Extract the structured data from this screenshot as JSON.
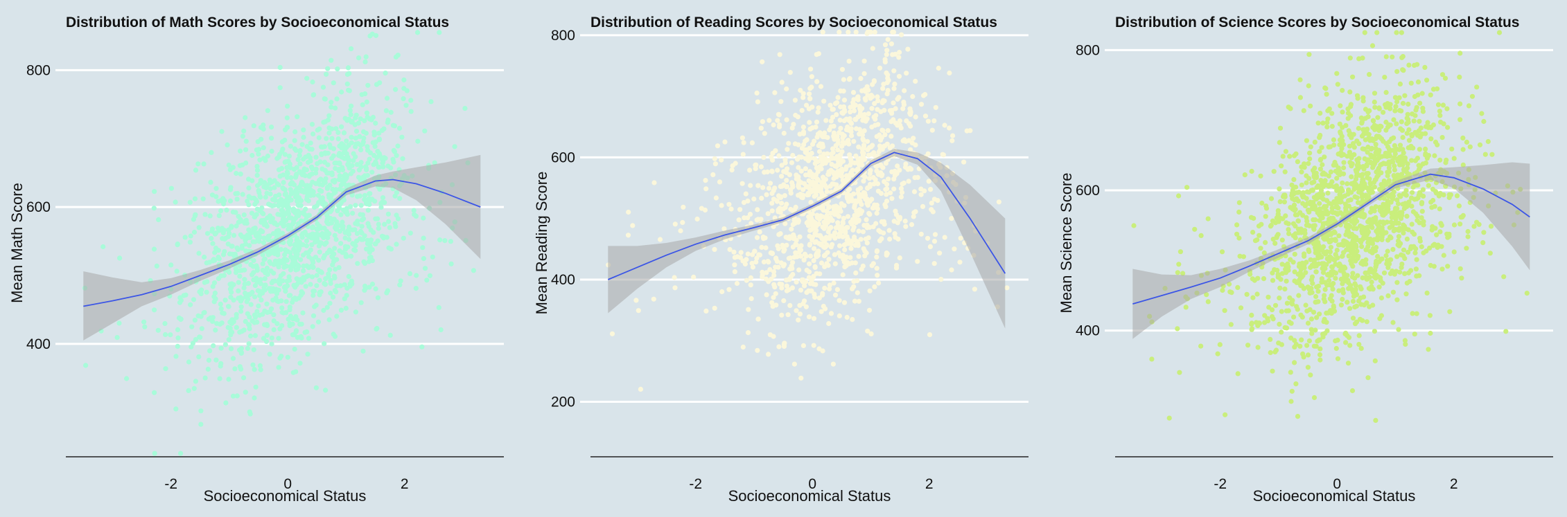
{
  "chart_data": [
    {
      "type": "scatter",
      "title": "Distribution of Math Scores by Socioeconomical Status",
      "xlabel": "Socioeconomical Status",
      "ylabel": "Mean Math Score",
      "xlim": [
        -3.8,
        3.7
      ],
      "ylim": [
        235,
        860
      ],
      "xticks": [
        -2,
        0,
        2
      ],
      "yticks": [
        400,
        600,
        800
      ],
      "point_color": "#a8fbd9",
      "point_distribution": {
        "n": 1600,
        "x_mean": 0.2,
        "x_sd": 0.95,
        "x_min": -3.5,
        "x_max": 3.4,
        "resid_sd": 85,
        "seed": 11
      },
      "smooth": {
        "x": [
          -3.5,
          -3.0,
          -2.5,
          -2.0,
          -1.5,
          -1.0,
          -0.5,
          0.0,
          0.5,
          1.0,
          1.5,
          1.8,
          2.2,
          2.7,
          3.3
        ],
        "y": [
          455,
          463,
          472,
          484,
          500,
          516,
          535,
          558,
          585,
          622,
          638,
          640,
          634,
          620,
          600
        ],
        "lower": [
          405,
          430,
          455,
          472,
          492,
          510,
          530,
          554,
          581,
          617,
          630,
          628,
          610,
          575,
          524
        ],
        "upper": [
          506,
          497,
          490,
          496,
          508,
          522,
          540,
          562,
          589,
          627,
          646,
          652,
          658,
          665,
          676
        ]
      },
      "grid": "horizontal",
      "line_color": "#3b55e6",
      "band_color": "#a8a8a8"
    },
    {
      "type": "scatter",
      "title": "Distribution of Reading Scores by Socioeconomical Status",
      "xlabel": "Socioeconomical Status",
      "ylabel": "Mean Reading Score",
      "xlim": [
        -3.8,
        3.7
      ],
      "ylim": [
        110,
        810
      ],
      "xticks": [
        -2,
        0,
        2
      ],
      "yticks": [
        200,
        400,
        600,
        800
      ],
      "point_color": "#fbf7db",
      "point_distribution": {
        "n": 1400,
        "x_mean": 0.35,
        "x_sd": 0.85,
        "x_min": -3.5,
        "x_max": 3.4,
        "resid_sd": 95,
        "seed": 23
      },
      "smooth": {
        "x": [
          -3.5,
          -3.0,
          -2.5,
          -2.0,
          -1.5,
          -1.0,
          -0.5,
          0.0,
          0.5,
          1.0,
          1.4,
          1.8,
          2.2,
          2.7,
          3.3
        ],
        "y": [
          400,
          420,
          440,
          458,
          473,
          485,
          498,
          520,
          545,
          590,
          608,
          598,
          568,
          500,
          410
        ],
        "lower": [
          345,
          385,
          420,
          447,
          466,
          480,
          494,
          516,
          541,
          585,
          602,
          588,
          545,
          445,
          320
        ],
        "upper": [
          455,
          455,
          460,
          469,
          480,
          490,
          502,
          524,
          549,
          595,
          614,
          608,
          591,
          555,
          500
        ]
      },
      "grid": "horizontal",
      "line_color": "#3b55e6",
      "band_color": "#a8a8a8"
    },
    {
      "type": "scatter",
      "title": "Distribution of Science Scores by Socioeconomical Status",
      "xlabel": "Socioeconomical Status",
      "ylabel": "Mean Science Score",
      "xlim": [
        -3.8,
        3.7
      ],
      "ylim": [
        220,
        830
      ],
      "xticks": [
        -2,
        0,
        2
      ],
      "yticks": [
        400,
        600,
        800
      ],
      "point_color": "#c9ee7c",
      "point_distribution": {
        "n": 1700,
        "x_mean": 0.3,
        "x_sd": 0.9,
        "x_min": -3.5,
        "x_max": 3.4,
        "resid_sd": 85,
        "seed": 37
      },
      "smooth": {
        "x": [
          -3.5,
          -3.0,
          -2.5,
          -2.0,
          -1.5,
          -1.0,
          -0.5,
          0.0,
          0.5,
          1.0,
          1.6,
          2.0,
          2.5,
          3.0,
          3.3
        ],
        "y": [
          438,
          450,
          462,
          475,
          492,
          510,
          528,
          552,
          580,
          608,
          623,
          618,
          602,
          580,
          562
        ],
        "lower": [
          388,
          420,
          445,
          462,
          484,
          504,
          523,
          548,
          576,
          603,
          615,
          603,
          568,
          520,
          486
        ],
        "upper": [
          488,
          480,
          479,
          488,
          500,
          516,
          533,
          556,
          584,
          613,
          631,
          633,
          636,
          640,
          638
        ]
      },
      "grid": "horizontal",
      "line_color": "#3b55e6",
      "band_color": "#a8a8a8"
    }
  ]
}
